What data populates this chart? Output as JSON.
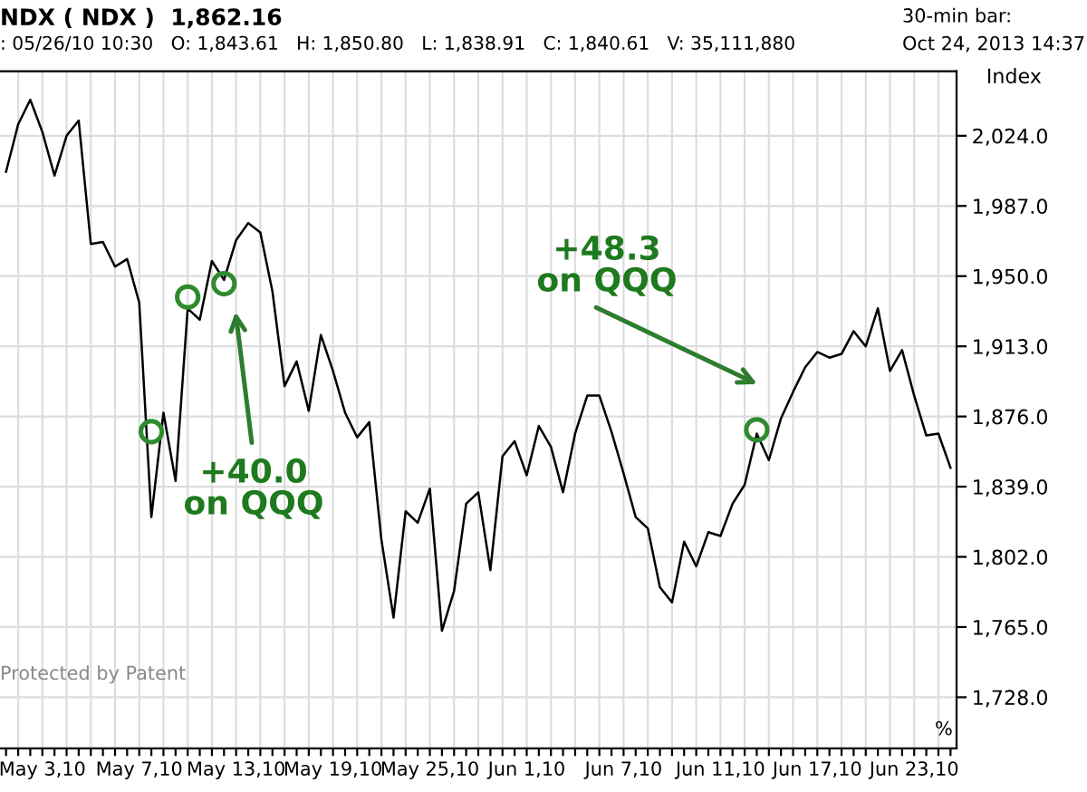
{
  "chart_data": {
    "type": "line",
    "title": "NDX ( NDX )  1,862.16",
    "subtitle": ": 05/26/10 10:30   O: 1,843.61   H: 1,850.80   L: 1,838.91   C: 1,840.61   V: 35,111,880",
    "ylabel": "Index",
    "annotations": [
      "30-min bar:",
      "Oct 24, 2013 14:37",
      "Protected by Patent",
      "%",
      "+40.0\non QQQ",
      "+48.3\non QQQ"
    ],
    "categories": [
      null,
      null,
      null,
      "May 3,10",
      null,
      null,
      null,
      null,
      null,
      null,
      null,
      "May 7,10",
      null,
      null,
      null,
      null,
      null,
      null,
      null,
      "May 13,10",
      null,
      null,
      null,
      null,
      null,
      null,
      null,
      "May 19,10",
      null,
      null,
      null,
      null,
      null,
      null,
      null,
      "May 25,10",
      null,
      null,
      null,
      null,
      null,
      null,
      null,
      "Jun 1,10",
      null,
      null,
      null,
      null,
      null,
      null,
      null,
      "Jun 7,10",
      null,
      null,
      null,
      null,
      null,
      null,
      null,
      "Jun 11,10",
      null,
      null,
      null,
      null,
      null,
      null,
      null,
      "Jun 17,10",
      null,
      null,
      null,
      null,
      null,
      null,
      null,
      "Jun 23,10",
      null,
      null,
      null
    ],
    "series": [
      {
        "color": "#000000",
        "values": [
          2005,
          2030,
          2043,
          2026,
          2003,
          2024,
          2032,
          1967,
          1968,
          1955,
          1959,
          1936,
          1823,
          1878,
          1842,
          1933,
          1927,
          1958,
          1948,
          1969,
          1978,
          1973,
          1942,
          1892,
          1905,
          1879,
          1919,
          1900,
          1878,
          1865,
          1873,
          1811,
          1770,
          1826,
          1820,
          1838,
          1763,
          1784,
          1830,
          1836,
          1795,
          1855,
          1863,
          1845,
          1871,
          1860,
          1836,
          1867,
          1887,
          1887,
          1868,
          1846,
          1823,
          1817,
          1786,
          1778,
          1810,
          1797,
          1815,
          1813,
          1830,
          1840,
          1867,
          1853,
          1875,
          1889,
          1902,
          1910,
          1907,
          1909,
          1921,
          1913,
          1933,
          1900,
          1911,
          1887,
          1866,
          1867,
          1849
        ]
      },
      {
        "type": "scatter",
        "color": "#2e8b2e",
        "marker": "circle",
        "values": [
          null,
          null,
          null,
          null,
          null,
          null,
          null,
          null,
          null,
          null,
          null,
          null,
          1868,
          null,
          null,
          1939,
          null,
          null,
          1946,
          null,
          null,
          null,
          null,
          null,
          null,
          null,
          null,
          null,
          null,
          null,
          null,
          null,
          null,
          null,
          null,
          null,
          null,
          null,
          null,
          null,
          null,
          null,
          null,
          null,
          null,
          null,
          null,
          null,
          null,
          null,
          null,
          null,
          null,
          null,
          null,
          null,
          null,
          null,
          null,
          null,
          null,
          null,
          1869,
          null,
          null,
          null,
          null,
          null,
          null,
          null,
          null,
          null,
          null,
          null,
          null,
          null,
          null,
          null,
          null
        ]
      }
    ],
    "ylim": [
      1701,
      2058
    ],
    "yticks": [
      {
        "value": 1728,
        "label": "1,728.0"
      },
      {
        "value": 1765,
        "label": "1,765.0"
      },
      {
        "value": 1802,
        "label": "1,802.0"
      },
      {
        "value": 1839,
        "label": "1,839.0"
      },
      {
        "value": 1876,
        "label": "1,876.0"
      },
      {
        "value": 1913,
        "label": "1,913.0"
      },
      {
        "value": 1950,
        "label": "1,950.0"
      },
      {
        "value": 1987,
        "label": "1,987.0"
      },
      {
        "value": 2024,
        "label": "2,024.0"
      }
    ],
    "grid": true
  }
}
